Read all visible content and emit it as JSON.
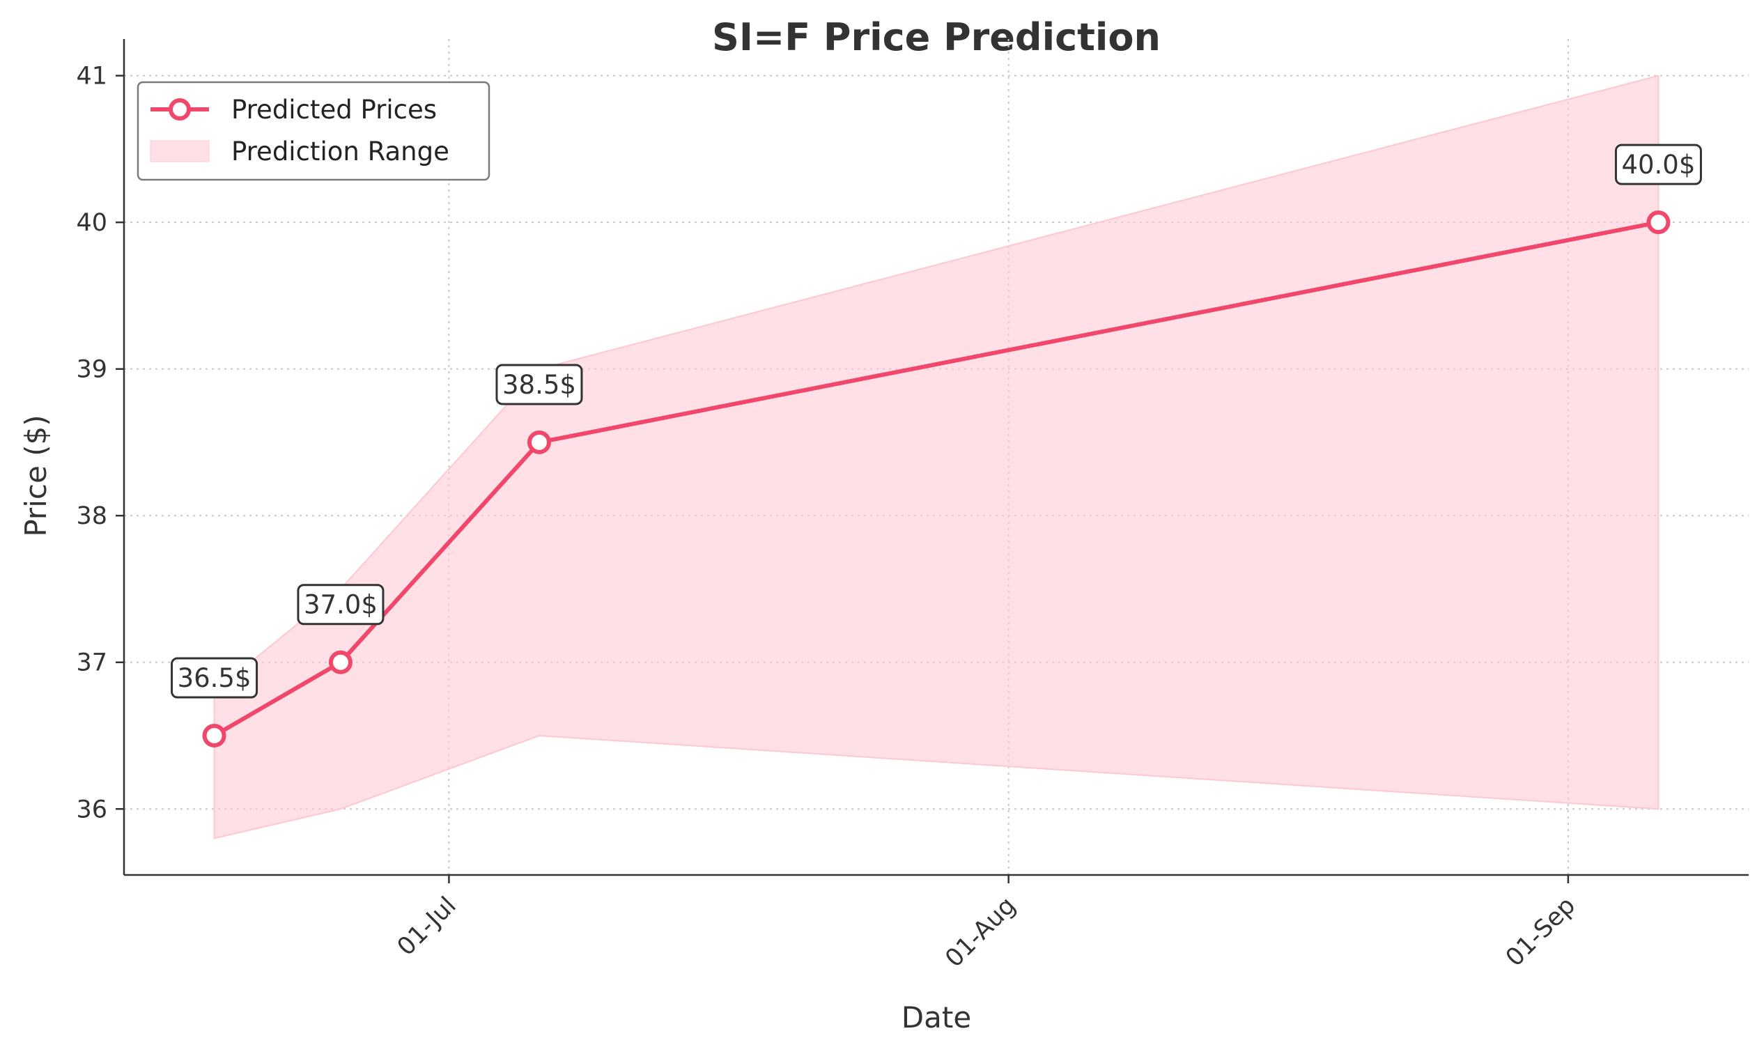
{
  "chart_data": {
    "type": "line",
    "title": "SI=F Price Prediction",
    "xlabel": "Date",
    "ylabel": "Price ($)",
    "x": [
      "2025-06-18",
      "2025-06-25",
      "2025-07-06",
      "2025-09-06"
    ],
    "series": [
      {
        "name": "Predicted Prices",
        "values": [
          36.5,
          37.0,
          38.5,
          40.0
        ],
        "labels": [
          "36.5$",
          "37.0$",
          "38.5$",
          "40.0$"
        ],
        "color": "#f0476a"
      }
    ],
    "range": {
      "name": "Prediction Range",
      "lower": [
        35.8,
        36.0,
        36.5,
        36.0
      ],
      "upper": [
        36.8,
        37.5,
        39.0,
        41.0
      ],
      "color": "#ffc7d2"
    },
    "x_ticks": [
      {
        "date": "2025-07-01",
        "label": "01-Jul"
      },
      {
        "date": "2025-08-01",
        "label": "01-Aug"
      },
      {
        "date": "2025-09-01",
        "label": "01-Sep"
      }
    ],
    "y_ticks": [
      36,
      37,
      38,
      39,
      40,
      41
    ],
    "xlim": [
      "2025-06-13",
      "2025-09-11"
    ],
    "ylim": [
      35.55,
      41.25
    ],
    "grid": true,
    "legend_position": "top-left"
  }
}
